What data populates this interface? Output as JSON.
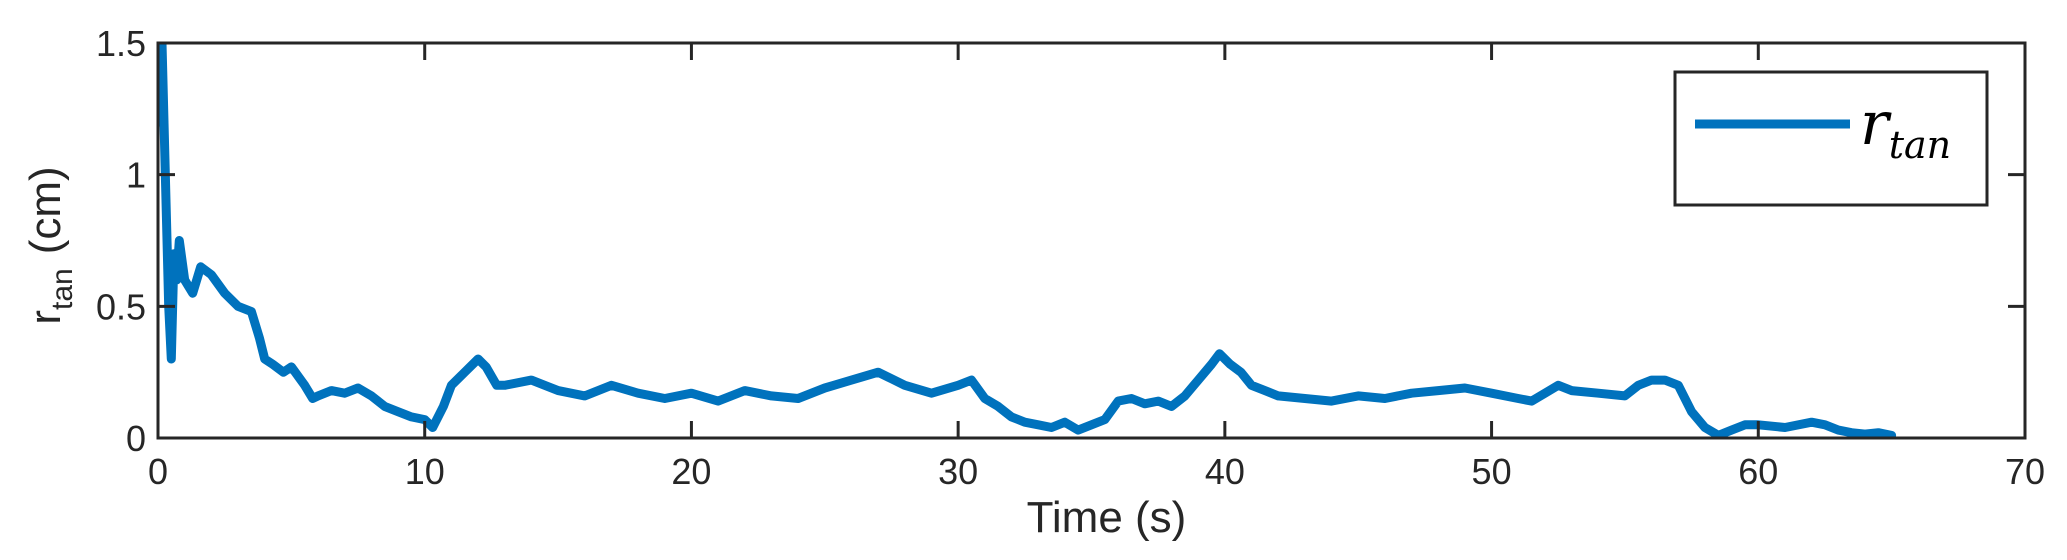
{
  "chart_data": {
    "type": "line",
    "title": "",
    "xlabel": "Time (s)",
    "ylabel_main": "r",
    "ylabel_sub": "tan",
    "ylabel_unit": "(cm)",
    "xlim": [
      0,
      70
    ],
    "ylim": [
      0,
      1.5
    ],
    "xticks": [
      0,
      10,
      20,
      30,
      40,
      50,
      60,
      70
    ],
    "yticks": [
      0,
      0.5,
      1,
      1.5
    ],
    "xtick_labels": [
      "0",
      "10",
      "20",
      "30",
      "40",
      "50",
      "60",
      "70"
    ],
    "ytick_labels": [
      "0",
      "0.5",
      "1",
      "1.5"
    ],
    "grid": false,
    "legend": {
      "position": "top-right",
      "main": "r",
      "sub": "tan"
    },
    "colors": {
      "series": "#0072BD",
      "axes": "#262626"
    },
    "series": [
      {
        "name": "r_tan",
        "x": [
          0.0,
          0.15,
          0.3,
          0.4,
          0.5,
          0.6,
          0.7,
          0.8,
          1.0,
          1.3,
          1.6,
          2.0,
          2.5,
          3.0,
          3.5,
          3.8,
          4.0,
          4.3,
          4.7,
          5.0,
          5.5,
          5.8,
          6.0,
          6.5,
          7.0,
          7.5,
          8.0,
          8.5,
          9.0,
          9.5,
          10.0,
          10.3,
          10.7,
          11.0,
          11.5,
          12.0,
          12.3,
          12.7,
          13.0,
          14.0,
          15.0,
          16.0,
          17.0,
          18.0,
          19.0,
          20.0,
          21.0,
          22.0,
          23.0,
          24.0,
          25.0,
          26.0,
          27.0,
          28.0,
          29.0,
          30.0,
          30.5,
          31.0,
          31.5,
          32.0,
          32.5,
          33.0,
          33.5,
          34.0,
          34.5,
          35.0,
          35.5,
          36.0,
          36.5,
          37.0,
          37.5,
          38.0,
          38.5,
          39.0,
          39.5,
          39.8,
          40.2,
          40.6,
          41.0,
          41.5,
          42.0,
          43.0,
          44.0,
          45.0,
          46.0,
          47.0,
          48.0,
          49.0,
          50.0,
          51.0,
          51.5,
          52.0,
          52.5,
          53.0,
          54.0,
          55.0,
          55.5,
          56.0,
          56.5,
          57.0,
          57.5,
          58.0,
          58.5,
          59.0,
          59.5,
          60.0,
          61.0,
          62.0,
          62.5,
          63.0,
          63.5,
          64.0,
          64.5,
          65.0
        ],
        "y": [
          1.2,
          1.5,
          0.9,
          0.5,
          0.3,
          0.7,
          0.6,
          0.75,
          0.6,
          0.55,
          0.65,
          0.62,
          0.55,
          0.5,
          0.48,
          0.38,
          0.3,
          0.28,
          0.25,
          0.27,
          0.2,
          0.15,
          0.16,
          0.18,
          0.17,
          0.19,
          0.16,
          0.12,
          0.1,
          0.08,
          0.07,
          0.04,
          0.12,
          0.2,
          0.25,
          0.3,
          0.27,
          0.2,
          0.2,
          0.22,
          0.18,
          0.16,
          0.2,
          0.17,
          0.15,
          0.17,
          0.14,
          0.18,
          0.16,
          0.15,
          0.19,
          0.22,
          0.25,
          0.2,
          0.17,
          0.2,
          0.22,
          0.15,
          0.12,
          0.08,
          0.06,
          0.05,
          0.04,
          0.06,
          0.03,
          0.05,
          0.07,
          0.14,
          0.15,
          0.13,
          0.14,
          0.12,
          0.16,
          0.22,
          0.28,
          0.32,
          0.28,
          0.25,
          0.2,
          0.18,
          0.16,
          0.15,
          0.14,
          0.16,
          0.15,
          0.17,
          0.18,
          0.19,
          0.17,
          0.15,
          0.14,
          0.17,
          0.2,
          0.18,
          0.17,
          0.16,
          0.2,
          0.22,
          0.22,
          0.2,
          0.1,
          0.04,
          0.01,
          0.03,
          0.05,
          0.05,
          0.04,
          0.06,
          0.05,
          0.03,
          0.02,
          0.015,
          0.02,
          0.01
        ]
      }
    ]
  }
}
